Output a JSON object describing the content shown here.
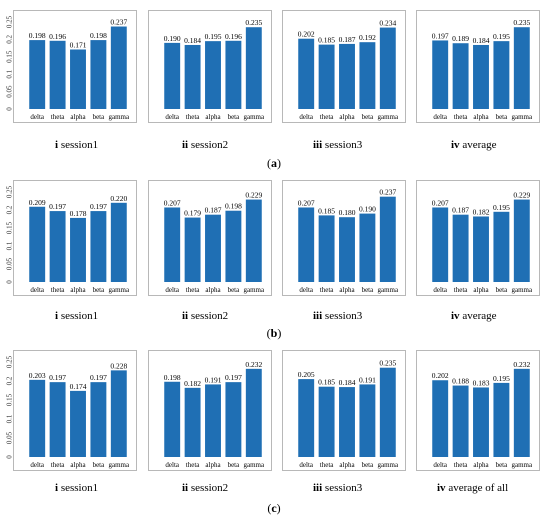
{
  "rows": [
    {
      "label_letter": "a",
      "panels": [
        {
          "roman": "i",
          "caption": "session1"
        },
        {
          "roman": "ii",
          "caption": "session2"
        },
        {
          "roman": "iii",
          "caption": "session3"
        },
        {
          "roman": "iv",
          "caption": "average"
        }
      ]
    },
    {
      "label_letter": "b",
      "panels": [
        {
          "roman": "i",
          "caption": "session1"
        },
        {
          "roman": "ii",
          "caption": "session2"
        },
        {
          "roman": "iii",
          "caption": "session3"
        },
        {
          "roman": "iv",
          "caption": "average"
        }
      ]
    },
    {
      "label_letter": "c",
      "panels": [
        {
          "roman": "i",
          "caption": "session1"
        },
        {
          "roman": "ii",
          "caption": "session2"
        },
        {
          "roman": "iii",
          "caption": "session3"
        },
        {
          "roman": "iv",
          "caption": "average of all"
        }
      ]
    }
  ],
  "chart_data": [
    {
      "type": "bar",
      "panel": "(a) i",
      "categories": [
        "delta",
        "theta",
        "alpha",
        "beta",
        "gamma"
      ],
      "values": [
        0.198,
        0.196,
        0.171,
        0.198,
        0.237
      ],
      "data_labels": [
        "0.198",
        "0.196",
        "0.171",
        "0.198",
        "0.237"
      ],
      "y_ticks": [
        "0",
        "0.05",
        "0.1",
        "0.15",
        "0.2",
        "0.25"
      ],
      "ylim": [
        0,
        0.25
      ],
      "title": "",
      "xlabel": "",
      "ylabel": "",
      "bar_color": "#1f6fb4",
      "grid": false
    },
    {
      "type": "bar",
      "panel": "(a) ii",
      "categories": [
        "delta",
        "theta",
        "alpha",
        "beta",
        "gamma"
      ],
      "values": [
        0.19,
        0.184,
        0.195,
        0.196,
        0.235
      ],
      "data_labels": [
        "0.190",
        "0.184",
        "0.195",
        "0.196",
        "0.235"
      ],
      "ylim": [
        0,
        0.25
      ],
      "title": "",
      "xlabel": "",
      "ylabel": "",
      "bar_color": "#1f6fb4",
      "grid": false
    },
    {
      "type": "bar",
      "panel": "(a) iii",
      "categories": [
        "delta",
        "theta",
        "alpha",
        "beta",
        "gamma"
      ],
      "values": [
        0.202,
        0.185,
        0.187,
        0.192,
        0.234
      ],
      "data_labels": [
        "0.202",
        "0.185",
        "0.187",
        "0.192",
        "0.234"
      ],
      "ylim": [
        0,
        0.25
      ],
      "title": "",
      "xlabel": "",
      "ylabel": "",
      "bar_color": "#1f6fb4",
      "grid": false
    },
    {
      "type": "bar",
      "panel": "(a) iv",
      "categories": [
        "delta",
        "theta",
        "alpha",
        "beta",
        "gamma"
      ],
      "values": [
        0.197,
        0.189,
        0.184,
        0.195,
        0.235
      ],
      "data_labels": [
        "0.197",
        "0.189",
        "0.184",
        "0.195",
        "0.235"
      ],
      "ylim": [
        0,
        0.25
      ],
      "title": "",
      "xlabel": "",
      "ylabel": "",
      "bar_color": "#1f6fb4",
      "grid": false
    },
    {
      "type": "bar",
      "panel": "(b) i",
      "categories": [
        "delta",
        "theta",
        "alpha",
        "beta",
        "gamma"
      ],
      "values": [
        0.209,
        0.197,
        0.178,
        0.197,
        0.22
      ],
      "data_labels": [
        "0.209",
        "0.197",
        "0.178",
        "0.197",
        "0.220"
      ],
      "y_ticks": [
        "0",
        "0.05",
        "0.1",
        "0.15",
        "0.2",
        "0.25"
      ],
      "ylim": [
        0,
        0.25
      ],
      "title": "",
      "xlabel": "",
      "ylabel": "",
      "bar_color": "#1f6fb4",
      "grid": false
    },
    {
      "type": "bar",
      "panel": "(b) ii",
      "categories": [
        "delta",
        "theta",
        "alpha",
        "beta",
        "gamma"
      ],
      "values": [
        0.207,
        0.179,
        0.187,
        0.198,
        0.229
      ],
      "data_labels": [
        "0.207",
        "0.179",
        "0.187",
        "0.198",
        "0.229"
      ],
      "ylim": [
        0,
        0.25
      ],
      "title": "",
      "xlabel": "",
      "ylabel": "",
      "bar_color": "#1f6fb4",
      "grid": false
    },
    {
      "type": "bar",
      "panel": "(b) iii",
      "categories": [
        "delta",
        "theta",
        "alpha",
        "beta",
        "gamma"
      ],
      "values": [
        0.207,
        0.185,
        0.18,
        0.19,
        0.237
      ],
      "data_labels": [
        "0.207",
        "0.185",
        "0.180",
        "0.190",
        "0.237"
      ],
      "ylim": [
        0,
        0.25
      ],
      "title": "",
      "xlabel": "",
      "ylabel": "",
      "bar_color": "#1f6fb4",
      "grid": false
    },
    {
      "type": "bar",
      "panel": "(b) iv",
      "categories": [
        "delta",
        "theta",
        "alpha",
        "beta",
        "gamma"
      ],
      "values": [
        0.207,
        0.187,
        0.182,
        0.195,
        0.229
      ],
      "data_labels": [
        "0.207",
        "0.187",
        "0.182",
        "0.195",
        "0.229"
      ],
      "ylim": [
        0,
        0.25
      ],
      "title": "",
      "xlabel": "",
      "ylabel": "",
      "bar_color": "#1f6fb4",
      "grid": false
    },
    {
      "type": "bar",
      "panel": "(c) i",
      "categories": [
        "delta",
        "theta",
        "alpha",
        "beta",
        "gamma"
      ],
      "values": [
        0.203,
        0.197,
        0.174,
        0.197,
        0.228
      ],
      "data_labels": [
        "0.203",
        "0.197",
        "0.174",
        "0.197",
        "0.228"
      ],
      "y_ticks": [
        "0",
        "0.05",
        "0.1",
        "0.15",
        "0.2",
        "0.25"
      ],
      "ylim": [
        0,
        0.25
      ],
      "title": "",
      "xlabel": "",
      "ylabel": "",
      "bar_color": "#1f6fb4",
      "grid": false
    },
    {
      "type": "bar",
      "panel": "(c) ii",
      "categories": [
        "delta",
        "theta",
        "alpha",
        "beta",
        "gamma"
      ],
      "values": [
        0.198,
        0.182,
        0.191,
        0.197,
        0.232
      ],
      "data_labels": [
        "0.198",
        "0.182",
        "0.191",
        "0.197",
        "0.232"
      ],
      "ylim": [
        0,
        0.25
      ],
      "title": "",
      "xlabel": "",
      "ylabel": "",
      "bar_color": "#1f6fb4",
      "grid": false
    },
    {
      "type": "bar",
      "panel": "(c) iii",
      "categories": [
        "delta",
        "theta",
        "alpha",
        "beta",
        "gamma"
      ],
      "values": [
        0.205,
        0.185,
        0.184,
        0.191,
        0.235
      ],
      "data_labels": [
        "0.205",
        "0.185",
        "0.184",
        "0.191",
        "0.235"
      ],
      "ylim": [
        0,
        0.25
      ],
      "title": "",
      "xlabel": "",
      "ylabel": "",
      "bar_color": "#1f6fb4",
      "grid": false
    },
    {
      "type": "bar",
      "panel": "(c) iv",
      "categories": [
        "delta",
        "theta",
        "alpha",
        "beta",
        "gamma"
      ],
      "values": [
        0.202,
        0.188,
        0.183,
        0.195,
        0.232
      ],
      "data_labels": [
        "0.202",
        "0.188",
        "0.183",
        "0.195",
        "0.232"
      ],
      "ylim": [
        0,
        0.25
      ],
      "title": "",
      "xlabel": "",
      "ylabel": "",
      "bar_color": "#1f6fb4",
      "grid": false
    }
  ]
}
